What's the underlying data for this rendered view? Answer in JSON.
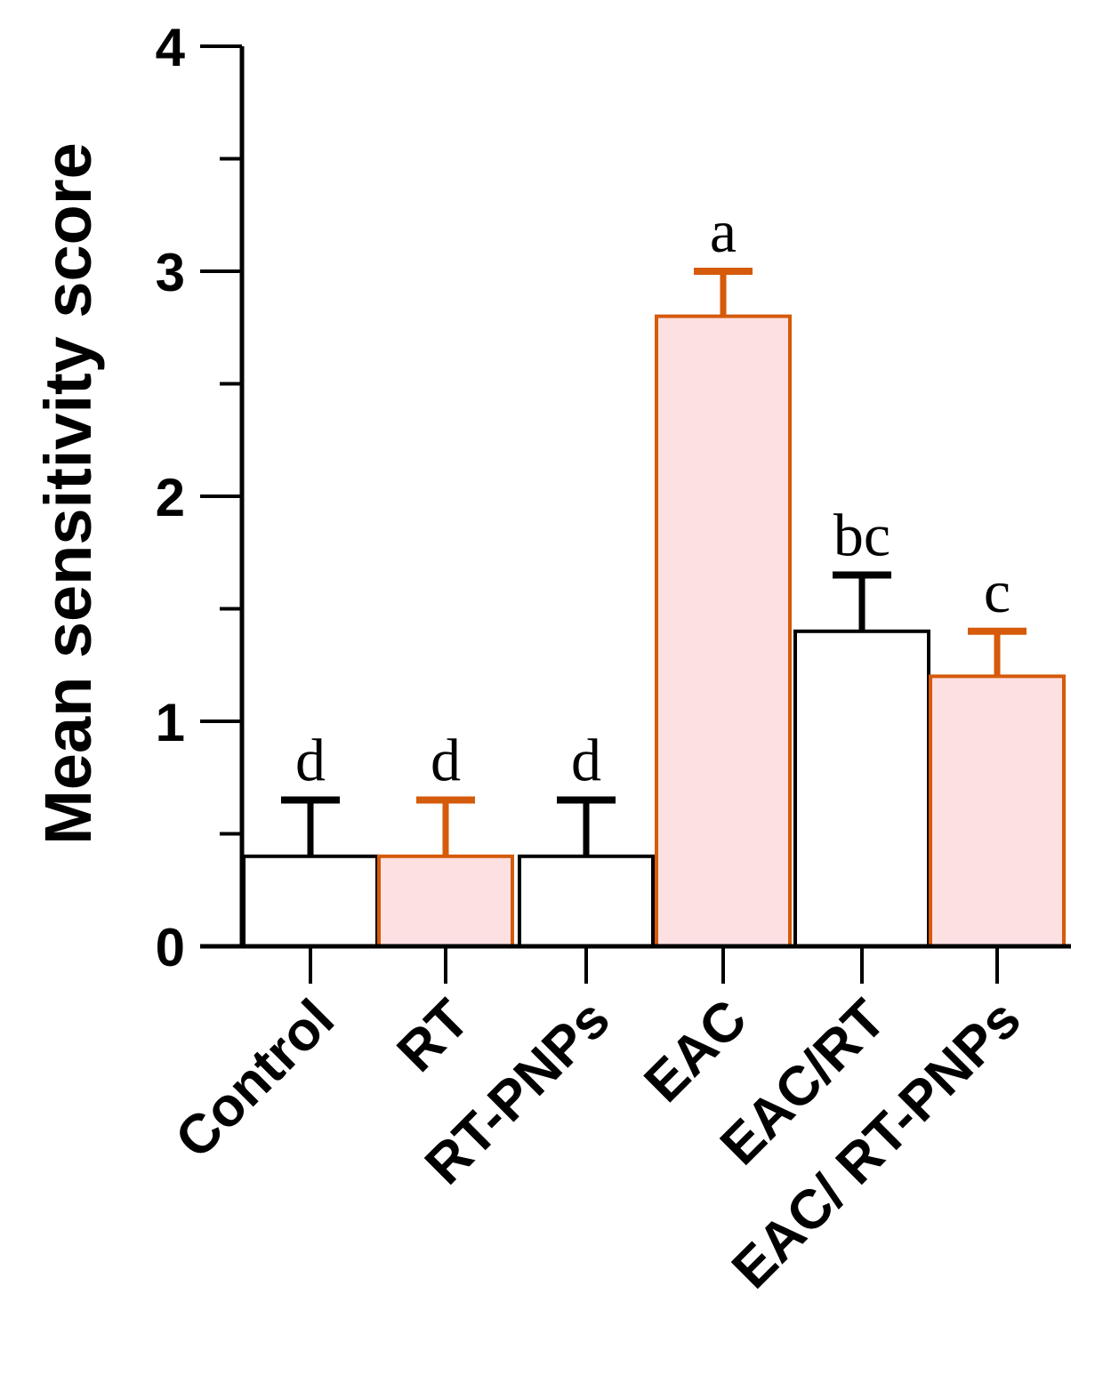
{
  "chart_data": {
    "type": "bar",
    "title": "",
    "xlabel": "",
    "ylabel": "Mean sensitivity score",
    "ylim": [
      0,
      4
    ],
    "yticks_major": [
      0,
      1,
      2,
      3,
      4
    ],
    "yticks_minor": [
      0.5,
      1.5,
      2.5,
      3.5
    ],
    "grid": false,
    "legend": "none",
    "categories": [
      "Control",
      "RT",
      "RT-PNPs",
      "EAC",
      "EAC/RT",
      "EAC/ RT-PNPs"
    ],
    "values": [
      0.4,
      0.4,
      0.4,
      2.8,
      1.4,
      1.2
    ],
    "errors": [
      0.25,
      0.25,
      0.25,
      0.2,
      0.25,
      0.2
    ],
    "significance_letters": [
      "d",
      "d",
      "d",
      "a",
      "bc",
      "c"
    ],
    "bar_styles": [
      "plain",
      "highlight",
      "plain",
      "highlight",
      "plain",
      "highlight"
    ],
    "colors": {
      "plain_fill": "#ffffff",
      "plain_stroke": "#000000",
      "highlight_fill": "#fde0e2",
      "highlight_stroke": "#d55a0a"
    }
  }
}
